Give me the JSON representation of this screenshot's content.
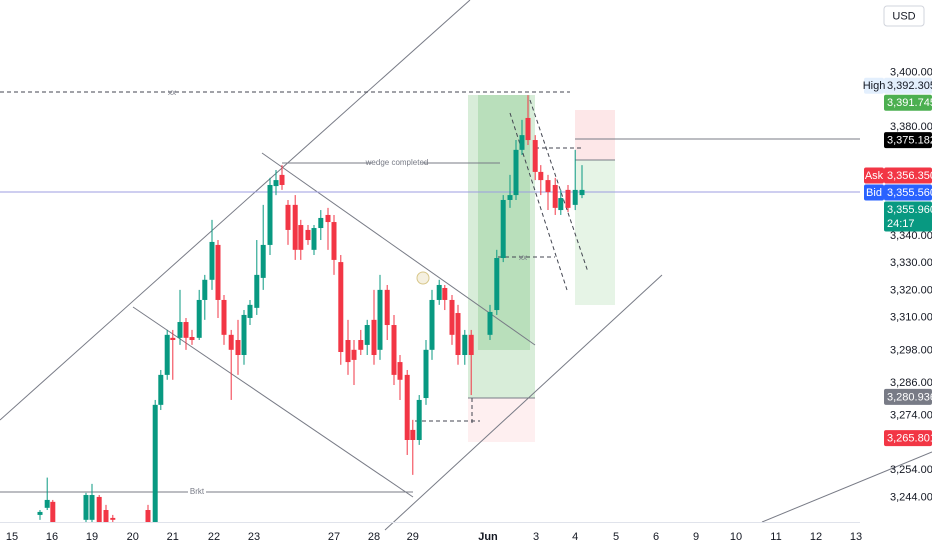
{
  "chart_data": {
    "type": "candlestick",
    "currency": "USD",
    "up_color": "#089981",
    "down_color": "#f23645",
    "x": [
      5.0,
      5.9,
      6.6,
      10.75,
      11.5,
      12.4,
      13.25,
      14.1,
      18.5,
      19.4,
      20.1,
      20.9,
      21.6,
      22.5,
      23.25,
      24.0,
      24.9,
      25.6,
      26.5,
      27.25,
      28.0,
      28.9,
      29.75,
      30.5,
      31.25,
      32.1,
      32.9,
      33.75,
      34.5,
      35.25,
      36.0,
      36.9,
      37.6,
      38.5,
      39.25,
      40.1,
      41.0,
      41.75,
      42.6,
      43.5,
      44.25,
      45.1,
      45.9,
      46.75,
      47.5,
      48.4,
      49.25,
      50.0,
      50.9,
      51.6,
      52.4,
      53.25,
      54.0,
      54.9,
      55.6,
      56.5,
      57.25,
      58.1,
      58.9,
      61.25,
      62.1,
      62.9,
      63.75,
      64.5,
      65.25,
      66.0,
      66.9,
      67.6,
      68.5,
      69.4,
      70.1,
      71.0,
      71.9,
      72.75
    ],
    "open": [
      3237.6,
      3240.2,
      3242.4,
      3235.8,
      3235.8,
      3244.2,
      3239.4,
      3236.5,
      3239.4,
      3235.0,
      3278.0,
      3289.0,
      3302.6,
      3302.6,
      3308.4,
      3302.9,
      3302.6,
      3316.5,
      3323.9,
      3336.7,
      3316.5,
      3303.7,
      3301.8,
      3296.3,
      3309.9,
      3313.6,
      3324.6,
      3336.7,
      3358.3,
      3362.4,
      3351.4,
      3351.4,
      3344.0,
      3342.2,
      3334.9,
      3342.9,
      3347.7,
      3345.1,
      3330.4,
      3301.8,
      3298.2,
      3301.8,
      3300.0,
      3309.2,
      3298.2,
      3320.2,
      3307.3,
      3293.7,
      3289.0,
      3268.8,
      3265.1,
      3280.5,
      3298.2,
      3316.5,
      3320.9,
      3316.5,
      3311.7,
      3296.3,
      3303.7,
      3303.7,
      3312.8,
      3331.9,
      3353.2,
      3355.0,
      3371.6,
      3383.3,
      3375.2,
      3363.5,
      3360.5,
      3358.7,
      3349.5,
      3356.9,
      3351.4,
      3355.0
    ],
    "high": [
      3239.4,
      3251.3,
      3243.1,
      3245.7,
      3249.0,
      3244.9,
      3241.3,
      3237.6,
      3241.3,
      3279.8,
      3290.8,
      3305.5,
      3305.5,
      3320.2,
      3309.9,
      3305.5,
      3320.2,
      3325.7,
      3345.9,
      3338.5,
      3318.3,
      3305.5,
      3309.2,
      3312.8,
      3316.5,
      3338.5,
      3351.4,
      3361.3,
      3364.2,
      3366.0,
      3353.2,
      3355.0,
      3345.9,
      3344.0,
      3344.0,
      3349.5,
      3350.3,
      3347.7,
      3333.0,
      3309.2,
      3301.8,
      3305.5,
      3309.2,
      3320.2,
      3325.7,
      3322.0,
      3311.0,
      3296.3,
      3290.8,
      3272.5,
      3281.6,
      3301.8,
      3320.2,
      3323.9,
      3322.0,
      3318.3,
      3314.7,
      3305.5,
      3305.5,
      3314.7,
      3334.9,
      3355.0,
      3362.4,
      3375.2,
      3382.6,
      3391.7,
      3377.0,
      3366.0,
      3362.4,
      3361.3,
      3356.9,
      3358.7,
      3371.6,
      3366.0
    ],
    "low": [
      3235.8,
      3239.4,
      3235.0,
      3235.0,
      3235.0,
      3235.0,
      3235.0,
      3235.0,
      3235.0,
      3235.0,
      3276.1,
      3287.2,
      3287.2,
      3300.0,
      3298.2,
      3300.0,
      3301.8,
      3309.2,
      3320.2,
      3309.9,
      3300.0,
      3279.8,
      3289.0,
      3292.7,
      3307.3,
      3311.0,
      3320.2,
      3333.0,
      3355.0,
      3356.9,
      3336.7,
      3331.2,
      3331.2,
      3336.7,
      3333.0,
      3338.5,
      3334.9,
      3325.7,
      3292.7,
      3289.0,
      3285.3,
      3296.3,
      3296.3,
      3292.7,
      3294.5,
      3301.8,
      3285.3,
      3279.8,
      3259.6,
      3252.3,
      3263.3,
      3278.0,
      3294.5,
      3314.7,
      3312.8,
      3300.0,
      3292.7,
      3292.7,
      3281.6,
      3301.8,
      3311.0,
      3330.4,
      3350.3,
      3353.2,
      3369.7,
      3373.4,
      3360.5,
      3355.0,
      3349.5,
      3347.7,
      3347.7,
      3348.8,
      3349.5,
      3353.9
    ],
    "close": [
      3238.7,
      3243.1,
      3235.0,
      3244.9,
      3244.9,
      3235.0,
      3235.0,
      3235.8,
      3235.0,
      3278.0,
      3289.0,
      3303.7,
      3301.8,
      3308.4,
      3302.6,
      3301.8,
      3316.5,
      3323.9,
      3337.8,
      3316.5,
      3303.7,
      3298.2,
      3296.3,
      3311.0,
      3314.7,
      3325.7,
      3336.7,
      3358.7,
      3360.5,
      3358.7,
      3342.2,
      3334.9,
      3334.9,
      3338.5,
      3342.9,
      3346.6,
      3345.1,
      3331.2,
      3297.4,
      3293.7,
      3294.5,
      3298.2,
      3307.3,
      3296.3,
      3320.2,
      3307.3,
      3289.0,
      3287.2,
      3265.1,
      3265.1,
      3279.8,
      3298.2,
      3316.5,
      3322.0,
      3316.5,
      3303.7,
      3296.3,
      3303.7,
      3296.3,
      3312.1,
      3331.9,
      3353.2,
      3355.0,
      3371.6,
      3377.0,
      3375.2,
      3363.5,
      3360.5,
      3356.1,
      3350.3,
      3353.9,
      3350.3,
      3356.9,
      3356.9
    ],
    "xlim": [
      0,
      107.5
    ],
    "ylim": [
      3235,
      3426.6
    ],
    "xticks": [
      {
        "value": 1.5,
        "label": "15"
      },
      {
        "value": 6.5,
        "label": "16"
      },
      {
        "value": 11.5,
        "label": "19"
      },
      {
        "value": 16.6,
        "label": "20"
      },
      {
        "value": 21.6,
        "label": "21"
      },
      {
        "value": 26.75,
        "label": "22"
      },
      {
        "value": 31.75,
        "label": "23"
      },
      {
        "value": 41.75,
        "label": "27"
      },
      {
        "value": 46.75,
        "label": "28"
      },
      {
        "value": 51.6,
        "label": "29"
      },
      {
        "value": 61,
        "label": "Jun"
      },
      {
        "value": 67,
        "label": "3"
      },
      {
        "value": 71.9,
        "label": "4"
      },
      {
        "value": 77,
        "label": "5"
      },
      {
        "value": 82,
        "label": "6"
      },
      {
        "value": 87,
        "label": "9"
      },
      {
        "value": 92,
        "label": "10"
      },
      {
        "value": 97,
        "label": "11"
      },
      {
        "value": 102,
        "label": "12"
      },
      {
        "value": 107,
        "label": "13"
      }
    ],
    "yticks": [
      {
        "value": 3244,
        "label": "3,244.000"
      },
      {
        "value": 3254,
        "label": "3,254.000"
      },
      {
        "value": 3274,
        "label": "3,274.000"
      },
      {
        "value": 3286,
        "label": "3,286.000"
      },
      {
        "value": 3298,
        "label": "3,298.000"
      },
      {
        "value": 3310,
        "label": "3,310.000"
      },
      {
        "value": 3320,
        "label": "3,320.000"
      },
      {
        "value": 3330,
        "label": "3,330.000"
      },
      {
        "value": 3340,
        "label": "3,340.000"
      },
      {
        "value": 3380,
        "label": "3,380.000"
      },
      {
        "value": 3400,
        "label": "3,400.000"
      }
    ],
    "price_labels": [
      {
        "tag": "High",
        "value": 3392.305,
        "label": "3,392.305",
        "color": "#e3effd"
      },
      {
        "value": 3391.745,
        "label": "3,391.745",
        "color": "#4caf50"
      },
      {
        "value": 3375.182,
        "label": "3,375.182",
        "color": "#000000"
      },
      {
        "tag": "Ask",
        "value": 3356.35,
        "label": "3,356.350",
        "color": "#f23645"
      },
      {
        "value": 3355.96,
        "label": "3,355.960",
        "countdown": "24:17",
        "color": "#089981"
      },
      {
        "tag": "Bid",
        "value": 3355.56,
        "label": "3,355.560",
        "color": "#2962ff"
      },
      {
        "value": 3280.936,
        "label": "3,280.936",
        "color": "#787b86"
      },
      {
        "value": 3265.801,
        "label": "3,265.801",
        "color": "#f23645"
      }
    ],
    "annotations": {
      "wedge": "wedge completed",
      "break": "Brkt",
      "marker_top": "xx",
      "marker_mid": "xx"
    }
  }
}
